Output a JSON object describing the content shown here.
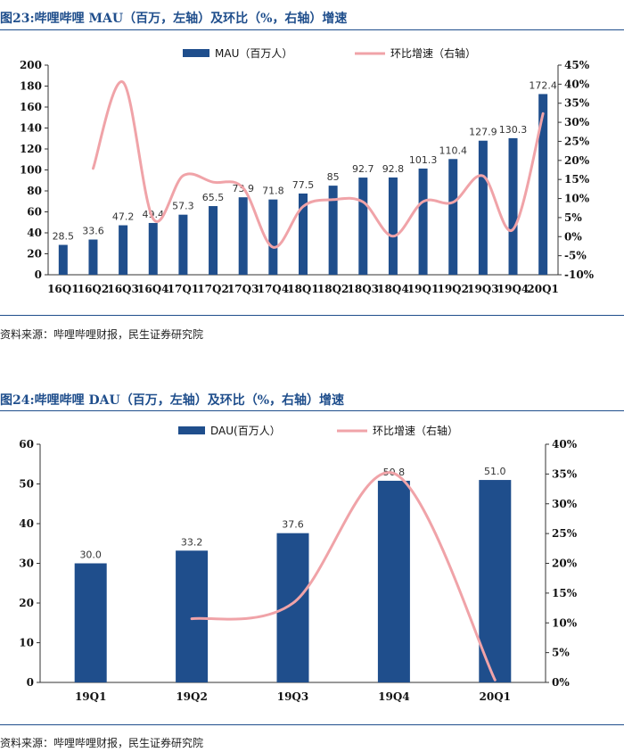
{
  "figure1": {
    "title": "图23:哔哩哔哩 MAU（百万，左轴）及环比（%，右轴）增速",
    "source": "资料来源：哔哩哔哩财报，民生证券研究院"
  },
  "figure2": {
    "title": "图24:哔哩哔哩 DAU（百万，左轴）及环比（%，右轴）增速",
    "source": "资料来源：哔哩哔哩财报，民生证券研究院"
  },
  "colors": {
    "bar": "#1f4e8c",
    "line": "#f0a3a8",
    "axis": "#333333",
    "rule": "#1f4e8c"
  },
  "chart_data": [
    {
      "type": "bar+line",
      "title": "哔哩哔哩 MAU（百万，左轴）及环比（%，右轴）增速",
      "categories": [
        "16Q1",
        "16Q2",
        "16Q3",
        "16Q4",
        "17Q1",
        "17Q2",
        "17Q3",
        "17Q4",
        "18Q1",
        "18Q2",
        "18Q3",
        "18Q4",
        "19Q1",
        "19Q2",
        "19Q3",
        "19Q4",
        "20Q1"
      ],
      "series": [
        {
          "name": "MAU（百万人）",
          "axis": "left",
          "kind": "bar",
          "values": [
            28.5,
            33.6,
            47.2,
            49.4,
            57.3,
            65.5,
            73.9,
            71.8,
            77.5,
            85,
            92.7,
            92.8,
            101.3,
            110.4,
            127.9,
            130.3,
            172.4
          ],
          "labels": [
            "28.5",
            "33.6",
            "47.2",
            "49.4",
            "57.3",
            "65.5",
            "73.9",
            "71.8",
            "77.5",
            "85",
            "92.7",
            "92.8",
            "101.3",
            "110.4",
            "127.9",
            "130.3",
            "172.4"
          ]
        },
        {
          "name": "环比增速（右轴）",
          "axis": "right",
          "kind": "line",
          "values": [
            null,
            17.9,
            40.5,
            4.7,
            16.0,
            14.3,
            12.8,
            -2.8,
            7.9,
            9.7,
            9.1,
            0.1,
            9.2,
            9.0,
            15.9,
            1.9,
            32.3
          ]
        }
      ],
      "y_left": {
        "min": 0,
        "max": 200,
        "ticks": [
          "0",
          "20",
          "40",
          "60",
          "80",
          "100",
          "120",
          "140",
          "160",
          "180",
          "200"
        ]
      },
      "y_right": {
        "min": -10,
        "max": 45,
        "ticks": [
          "-10%",
          "-5%",
          "0%",
          "5%",
          "10%",
          "15%",
          "20%",
          "25%",
          "30%",
          "35%",
          "40%",
          "45%"
        ]
      },
      "legend": "top-center"
    },
    {
      "type": "bar+line",
      "title": "哔哩哔哩 DAU（百万，左轴）及环比（%，右轴）增速",
      "categories": [
        "19Q1",
        "19Q2",
        "19Q3",
        "19Q4",
        "20Q1"
      ],
      "series": [
        {
          "name": "DAU(百万人）",
          "axis": "left",
          "kind": "bar",
          "values": [
            30.0,
            33.2,
            37.6,
            50.8,
            51.0
          ],
          "labels": [
            "30.0",
            "33.2",
            "37.6",
            "50.8",
            "51.0"
          ]
        },
        {
          "name": "环比增速（右轴）",
          "axis": "right",
          "kind": "line",
          "values": [
            null,
            10.7,
            13.3,
            35.1,
            0.4
          ]
        }
      ],
      "y_left": {
        "min": 0,
        "max": 60,
        "ticks": [
          "0",
          "10",
          "20",
          "30",
          "40",
          "50",
          "60"
        ]
      },
      "y_right": {
        "min": 0,
        "max": 40,
        "ticks": [
          "0%",
          "5%",
          "10%",
          "15%",
          "20%",
          "25%",
          "30%",
          "35%",
          "40%"
        ]
      },
      "legend": "top-center"
    }
  ]
}
